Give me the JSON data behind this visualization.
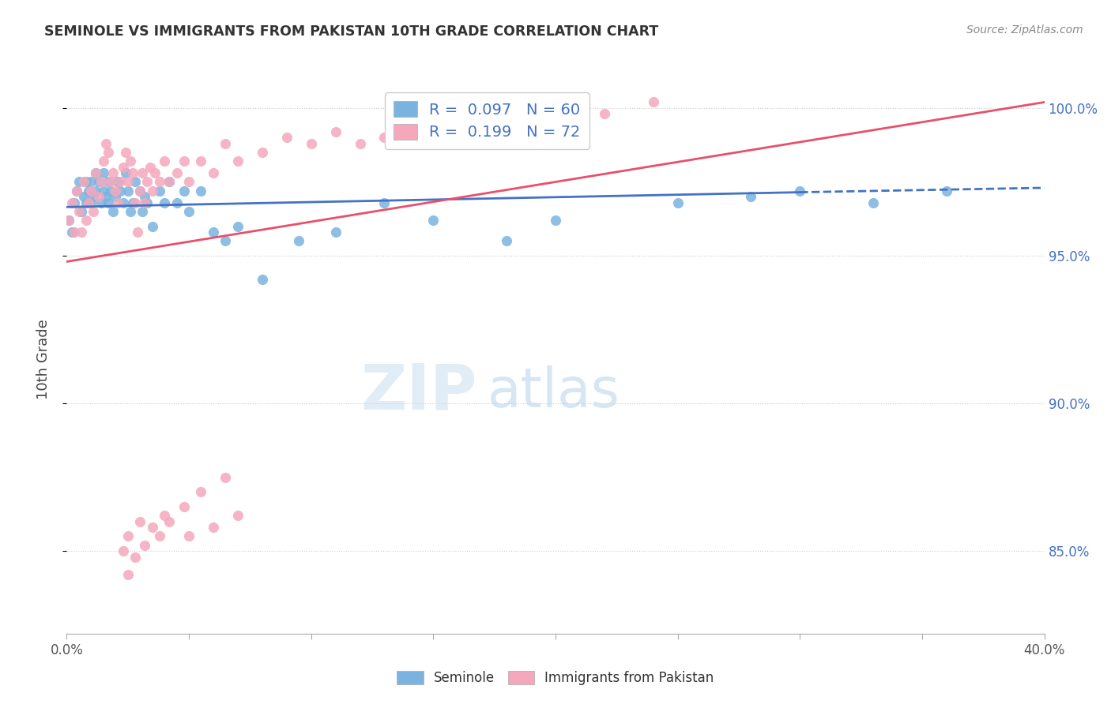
{
  "title": "SEMINOLE VS IMMIGRANTS FROM PAKISTAN 10TH GRADE CORRELATION CHART",
  "source": "Source: ZipAtlas.com",
  "ylabel": "10th Grade",
  "xmin": 0.0,
  "xmax": 0.4,
  "ymin": 0.822,
  "ymax": 1.008,
  "yticks": [
    0.85,
    0.9,
    0.95,
    1.0
  ],
  "ytick_labels": [
    "85.0%",
    "90.0%",
    "95.0%",
    "100.0%"
  ],
  "blue_R": "0.097",
  "blue_N": "60",
  "pink_R": "0.199",
  "pink_N": "72",
  "blue_color": "#7ab3e0",
  "pink_color": "#f5a8bc",
  "trend_blue": "#4472c4",
  "trend_pink": "#e8506a",
  "watermark_zip": "ZIP",
  "watermark_atlas": "atlas",
  "legend_label_blue": "Seminole",
  "legend_label_pink": "Immigrants from Pakistan",
  "blue_scatter_x": [
    0.001,
    0.002,
    0.003,
    0.004,
    0.005,
    0.006,
    0.007,
    0.008,
    0.008,
    0.009,
    0.01,
    0.01,
    0.011,
    0.012,
    0.012,
    0.013,
    0.014,
    0.015,
    0.015,
    0.016,
    0.017,
    0.017,
    0.018,
    0.019,
    0.02,
    0.021,
    0.022,
    0.023,
    0.024,
    0.025,
    0.026,
    0.027,
    0.028,
    0.03,
    0.031,
    0.032,
    0.033,
    0.035,
    0.038,
    0.04,
    0.042,
    0.045,
    0.048,
    0.05,
    0.055,
    0.06,
    0.065,
    0.07,
    0.08,
    0.095,
    0.11,
    0.13,
    0.15,
    0.18,
    0.2,
    0.25,
    0.28,
    0.3,
    0.33,
    0.36
  ],
  "blue_scatter_y": [
    0.962,
    0.958,
    0.968,
    0.972,
    0.975,
    0.965,
    0.97,
    0.968,
    0.975,
    0.972,
    0.968,
    0.975,
    0.97,
    0.972,
    0.978,
    0.975,
    0.968,
    0.972,
    0.978,
    0.97,
    0.975,
    0.968,
    0.972,
    0.965,
    0.97,
    0.975,
    0.972,
    0.968,
    0.978,
    0.972,
    0.965,
    0.968,
    0.975,
    0.972,
    0.965,
    0.97,
    0.968,
    0.96,
    0.972,
    0.968,
    0.975,
    0.968,
    0.972,
    0.965,
    0.972,
    0.958,
    0.955,
    0.96,
    0.942,
    0.955,
    0.958,
    0.968,
    0.962,
    0.955,
    0.962,
    0.968,
    0.97,
    0.972,
    0.968,
    0.972
  ],
  "pink_scatter_x": [
    0.001,
    0.002,
    0.003,
    0.004,
    0.005,
    0.006,
    0.007,
    0.008,
    0.009,
    0.01,
    0.011,
    0.012,
    0.013,
    0.014,
    0.015,
    0.016,
    0.017,
    0.018,
    0.019,
    0.02,
    0.021,
    0.022,
    0.023,
    0.024,
    0.025,
    0.026,
    0.027,
    0.028,
    0.029,
    0.03,
    0.031,
    0.032,
    0.033,
    0.034,
    0.035,
    0.036,
    0.038,
    0.04,
    0.042,
    0.045,
    0.048,
    0.05,
    0.055,
    0.06,
    0.065,
    0.07,
    0.08,
    0.09,
    0.1,
    0.11,
    0.12,
    0.13,
    0.15,
    0.2,
    0.22,
    0.24,
    0.023,
    0.025,
    0.03,
    0.035,
    0.04,
    0.05,
    0.06,
    0.07,
    0.025,
    0.028,
    0.032,
    0.038,
    0.042,
    0.048,
    0.055,
    0.065
  ],
  "pink_scatter_y": [
    0.962,
    0.968,
    0.958,
    0.972,
    0.965,
    0.958,
    0.975,
    0.962,
    0.968,
    0.972,
    0.965,
    0.978,
    0.97,
    0.975,
    0.982,
    0.988,
    0.985,
    0.975,
    0.978,
    0.972,
    0.968,
    0.975,
    0.98,
    0.985,
    0.975,
    0.982,
    0.978,
    0.968,
    0.958,
    0.972,
    0.978,
    0.968,
    0.975,
    0.98,
    0.972,
    0.978,
    0.975,
    0.982,
    0.975,
    0.978,
    0.982,
    0.975,
    0.982,
    0.978,
    0.988,
    0.982,
    0.985,
    0.99,
    0.988,
    0.992,
    0.988,
    0.99,
    0.992,
    0.995,
    0.998,
    1.002,
    0.85,
    0.855,
    0.86,
    0.858,
    0.862,
    0.855,
    0.858,
    0.862,
    0.842,
    0.848,
    0.852,
    0.855,
    0.86,
    0.865,
    0.87,
    0.875
  ]
}
